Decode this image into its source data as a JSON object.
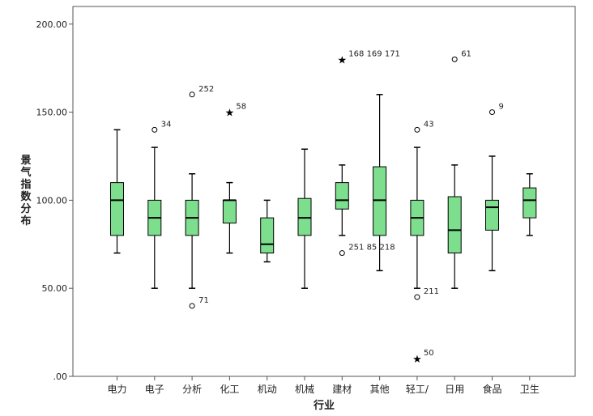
{
  "chart_data": {
    "type": "boxplot",
    "xlabel": "行业",
    "ylabel": "景气指数分布",
    "ylim": [
      0,
      210
    ],
    "yticks": [
      {
        "value": 0,
        "label": ".00"
      },
      {
        "value": 50,
        "label": "50.00"
      },
      {
        "value": 100,
        "label": "100.00"
      },
      {
        "value": 150,
        "label": "150.00"
      },
      {
        "value": 200,
        "label": "200.00"
      }
    ],
    "grid": false,
    "box_color": "#7dde8d",
    "categories": [
      "电力",
      "电子",
      "分析",
      "化工",
      "机动",
      "机械",
      "建材",
      "其他",
      "轻工/",
      "日用",
      "食品",
      "卫生"
    ],
    "boxes": [
      {
        "whisker_low": 70,
        "q1": 80,
        "median": 100,
        "q3": 110,
        "whisker_high": 140,
        "outliers": []
      },
      {
        "whisker_low": 50,
        "q1": 80,
        "median": 90,
        "q3": 100,
        "whisker_high": 130,
        "outliers": [
          {
            "value": 140,
            "marker": "circle",
            "label": "34"
          }
        ]
      },
      {
        "whisker_low": 50,
        "q1": 80,
        "median": 90,
        "q3": 100,
        "whisker_high": 115,
        "outliers": [
          {
            "value": 160,
            "marker": "circle",
            "label": "252"
          },
          {
            "value": 40,
            "marker": "circle",
            "label": "71"
          }
        ]
      },
      {
        "whisker_low": 70,
        "q1": 87,
        "median": 100,
        "q3": 100,
        "whisker_high": 110,
        "outliers": [
          {
            "value": 150,
            "marker": "star",
            "label": "58"
          }
        ]
      },
      {
        "whisker_low": 65,
        "q1": 70,
        "median": 75,
        "q3": 90,
        "whisker_high": 100,
        "outliers": []
      },
      {
        "whisker_low": 50,
        "q1": 80,
        "median": 90,
        "q3": 101,
        "whisker_high": 129,
        "outliers": []
      },
      {
        "whisker_low": 80,
        "q1": 95,
        "median": 100,
        "q3": 110,
        "whisker_high": 120,
        "outliers": [
          {
            "value": 180,
            "marker": "star",
            "label": "168 169 171"
          },
          {
            "value": 70,
            "marker": "circle",
            "label": "251 85 218"
          }
        ]
      },
      {
        "whisker_low": 60,
        "q1": 80,
        "median": 100,
        "q3": 119,
        "whisker_high": 160,
        "outliers": []
      },
      {
        "whisker_low": 50,
        "q1": 80,
        "median": 90,
        "q3": 100,
        "whisker_high": 130,
        "outliers": [
          {
            "value": 140,
            "marker": "circle",
            "label": "43"
          },
          {
            "value": 45,
            "marker": "circle",
            "label": "211"
          },
          {
            "value": 10,
            "marker": "star",
            "label": "50"
          }
        ]
      },
      {
        "whisker_low": 50,
        "q1": 70,
        "median": 83,
        "q3": 102,
        "whisker_high": 120,
        "outliers": [
          {
            "value": 180,
            "marker": "circle",
            "label": "61"
          }
        ]
      },
      {
        "whisker_low": 60,
        "q1": 83,
        "median": 96,
        "q3": 100,
        "whisker_high": 125,
        "outliers": [
          {
            "value": 150,
            "marker": "circle",
            "label": "9"
          }
        ]
      },
      {
        "whisker_low": 80,
        "q1": 90,
        "median": 100,
        "q3": 107,
        "whisker_high": 115,
        "outliers": []
      }
    ]
  }
}
